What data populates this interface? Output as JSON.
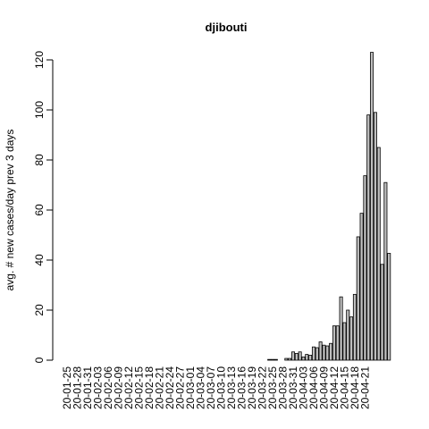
{
  "chart_data": {
    "type": "bar",
    "title": "djibouti",
    "ylabel": "avg. # new cases/day prev  3  days",
    "xlabel": "",
    "ylim": [
      0,
      125
    ],
    "yticks": [
      0,
      20,
      40,
      60,
      80,
      100,
      120
    ],
    "grid": false,
    "bar_color": "#bebebe",
    "start_date": "20-01-25",
    "tick_labels": [
      "20-01-25",
      "20-01-28",
      "20-01-31",
      "20-02-03",
      "20-02-06",
      "20-02-09",
      "20-02-12",
      "20-02-15",
      "20-02-18",
      "20-02-21",
      "20-02-24",
      "20-02-27",
      "20-03-01",
      "20-03-04",
      "20-03-07",
      "20-03-10",
      "20-03-13",
      "20-03-16",
      "20-03-19",
      "20-03-22",
      "20-03-25",
      "20-03-28",
      "20-03-31",
      "20-04-03",
      "20-04-06",
      "20-04-09",
      "20-04-12",
      "20-04-15",
      "20-04-18",
      "20-04-21"
    ],
    "values": [
      0,
      0,
      0,
      0,
      0,
      0,
      0,
      0,
      0,
      0,
      0,
      0,
      0,
      0,
      0,
      0,
      0,
      0,
      0,
      0,
      0,
      0,
      0,
      0,
      0,
      0,
      0,
      0,
      0,
      0,
      0,
      0,
      0,
      0,
      0,
      0,
      0,
      0,
      0,
      0,
      0,
      0,
      0,
      0,
      0,
      0,
      0,
      0,
      0,
      0,
      0,
      0,
      0,
      0,
      0,
      0,
      0,
      0,
      0,
      0.3,
      0.3,
      0.3,
      0,
      0,
      0.7,
      0.7,
      3.3,
      2.7,
      3.3,
      1.3,
      2.3,
      2,
      5.3,
      5,
      7.3,
      6,
      5.7,
      6.7,
      13.7,
      13.7,
      25.3,
      15,
      20,
      17.3,
      26.3,
      49.3,
      58.7,
      73.7,
      98,
      123,
      99,
      85,
      38.3,
      71,
      42.7
    ]
  }
}
